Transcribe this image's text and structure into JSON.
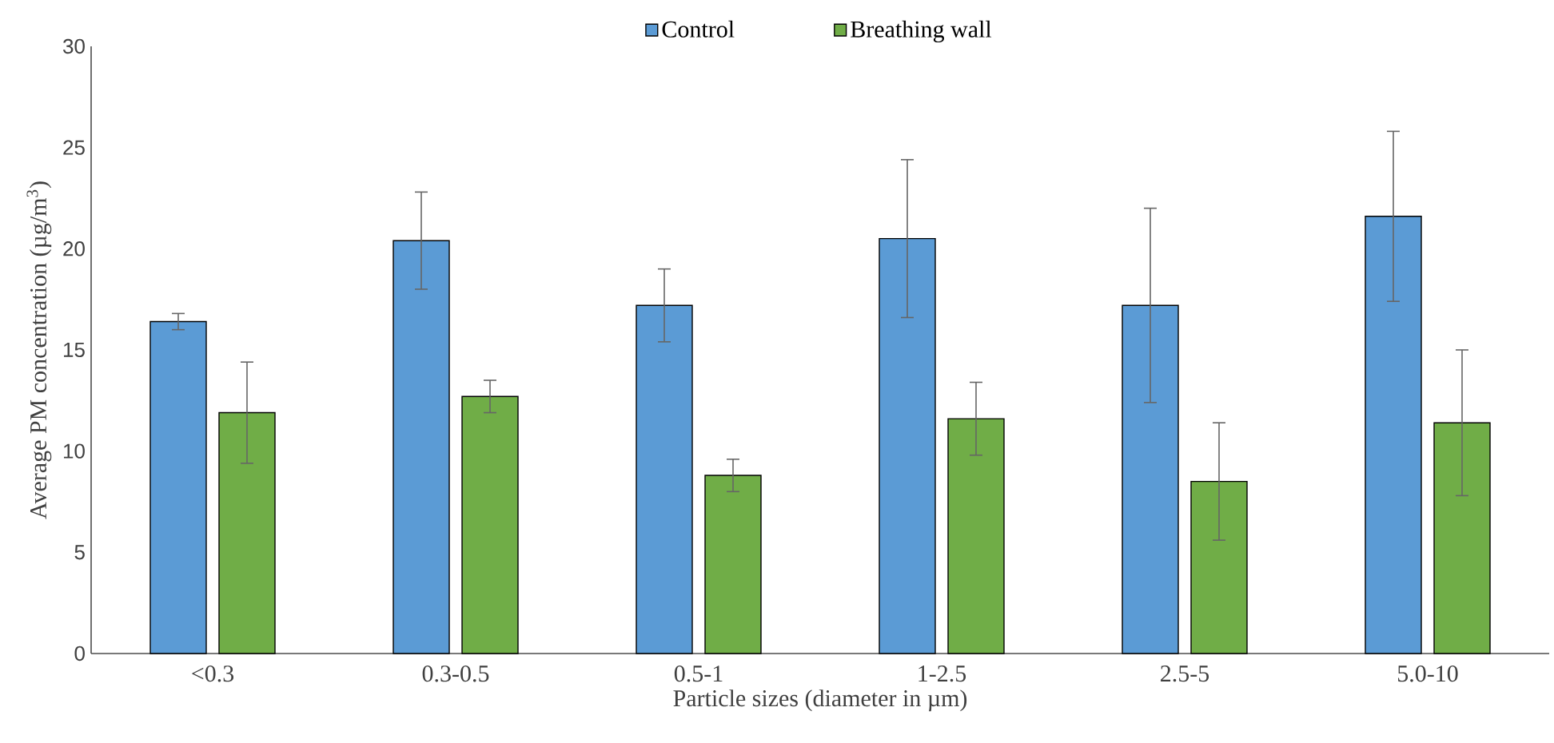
{
  "chart_data": {
    "type": "bar",
    "xlabel": "Particle sizes (diameter in µm)",
    "ylabel": "Average PM concentration (µg/m$^{3}$)",
    "categories": [
      "<0.3",
      "0.3-0.5",
      "0.5-1",
      "1-2.5",
      "2.5-5",
      "5.0-10"
    ],
    "series": [
      {
        "name": "Control",
        "color": "#5b9bd5",
        "values": [
          16.4,
          20.4,
          17.2,
          20.5,
          17.2,
          21.6
        ],
        "errors": [
          0.4,
          2.4,
          1.8,
          3.9,
          4.8,
          4.2
        ]
      },
      {
        "name": "Breathing wall",
        "color": "#70ad47",
        "values": [
          11.9,
          12.7,
          8.8,
          11.6,
          8.5,
          11.4
        ],
        "errors": [
          2.5,
          0.8,
          0.8,
          1.8,
          2.9,
          3.6
        ]
      }
    ],
    "ylim": [
      0,
      30
    ],
    "yticks": [
      0,
      5,
      10,
      15,
      20,
      25,
      30
    ],
    "grid": false,
    "legend": "top"
  }
}
